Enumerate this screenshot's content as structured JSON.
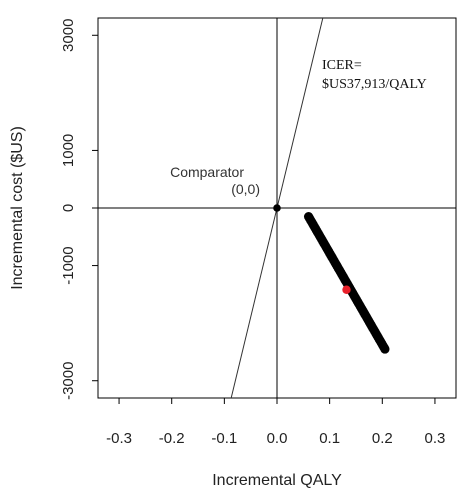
{
  "chart_data": {
    "type": "scatter",
    "title": "",
    "xlabel": "Incremental QALY",
    "ylabel": "Incremental cost  ($US)",
    "xlim": [
      -0.34,
      0.34
    ],
    "ylim": [
      -3300,
      3300
    ],
    "xticks": [
      -0.3,
      -0.2,
      -0.1,
      0.0,
      0.1,
      0.2,
      0.3
    ],
    "xtick_labels": [
      "-0.3",
      "-0.2",
      "-0.1",
      "0.0",
      "0.1",
      "0.2",
      "0.3"
    ],
    "yticks": [
      -3000,
      -1000,
      0,
      1000,
      3000
    ],
    "ytick_labels": [
      "-3000",
      "-1000",
      "0",
      "1000",
      "3000"
    ],
    "grid": false,
    "quadrant_lines": true,
    "comparator": {
      "label_line1": "Comparator",
      "label_line2": "(0,0)",
      "x": 0.0,
      "y": 0.0,
      "color": "#000000"
    },
    "icer": {
      "label_line1": "ICER=",
      "label_line2": "$US37,913/QALY",
      "slope": 37913
    },
    "simulation": {
      "color": "#000000",
      "x_start": 0.06,
      "y_start": -150,
      "x_end": 0.205,
      "y_end": -2450,
      "n_points": 70
    },
    "point_estimate": {
      "x": 0.132,
      "y": -1420,
      "color": "#e8202a"
    }
  }
}
